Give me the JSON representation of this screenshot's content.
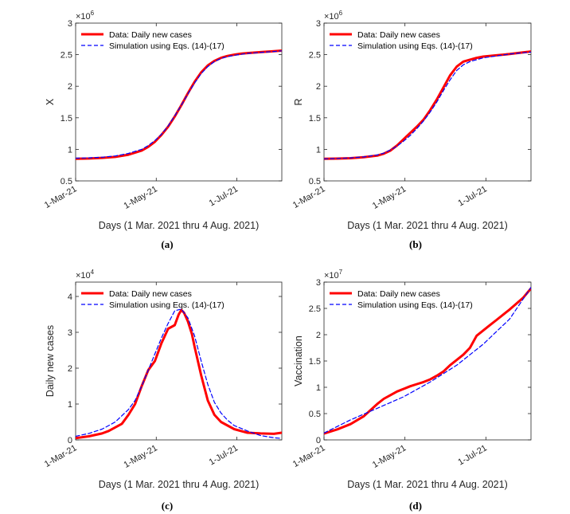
{
  "chart_data": [
    {
      "type": "line",
      "panel_caption": "(a)",
      "ylabel": "X",
      "xlabel": "Days (1 Mar. 2021 thru 4 Aug. 2021)",
      "xticks": [
        "1-Mar-21",
        "1-May-21",
        "1-Jul-21"
      ],
      "xtick_days": [
        0,
        61,
        122
      ],
      "xlim": [
        0,
        156
      ],
      "ylim": [
        0.5,
        3
      ],
      "yticks": [
        0.5,
        1,
        1.5,
        2,
        2.5,
        3
      ],
      "ytick_labels": [
        "0.5",
        "1",
        "1.5",
        "2",
        "2.5",
        "3"
      ],
      "exponent": "6",
      "legend_position": "top-left",
      "series": [
        {
          "name": "Data: Daily new cases",
          "color": "#ff0000",
          "style": "solid",
          "x": [
            0,
            10,
            20,
            30,
            40,
            50,
            55,
            60,
            65,
            70,
            75,
            80,
            85,
            90,
            95,
            100,
            105,
            110,
            115,
            120,
            125,
            130,
            140,
            150,
            156
          ],
          "y": [
            0.85,
            0.855,
            0.865,
            0.88,
            0.915,
            0.98,
            1.04,
            1.12,
            1.23,
            1.36,
            1.52,
            1.7,
            1.89,
            2.07,
            2.22,
            2.33,
            2.4,
            2.45,
            2.48,
            2.5,
            2.515,
            2.525,
            2.54,
            2.555,
            2.565
          ]
        },
        {
          "name": "Simulation using Eqs. (14)-(17)",
          "color": "#0000ff",
          "style": "dashed",
          "x": [
            0,
            10,
            20,
            30,
            40,
            50,
            55,
            60,
            65,
            70,
            75,
            80,
            85,
            90,
            95,
            100,
            105,
            110,
            115,
            120,
            125,
            130,
            140,
            150,
            156
          ],
          "y": [
            0.86,
            0.865,
            0.875,
            0.895,
            0.935,
            1.0,
            1.06,
            1.14,
            1.24,
            1.37,
            1.53,
            1.7,
            1.88,
            2.05,
            2.2,
            2.31,
            2.39,
            2.44,
            2.47,
            2.49,
            2.505,
            2.52,
            2.535,
            2.55,
            2.56
          ]
        }
      ]
    },
    {
      "type": "line",
      "panel_caption": "(b)",
      "ylabel": "R",
      "xlabel": "Days (1 Mar. 2021 thru 4 Aug. 2021)",
      "xticks": [
        "1-Mar-21",
        "1-May-21",
        "1-Jul-21"
      ],
      "xtick_days": [
        0,
        61,
        122
      ],
      "xlim": [
        0,
        156
      ],
      "ylim": [
        0.5,
        3
      ],
      "yticks": [
        0.5,
        1,
        1.5,
        2,
        2.5,
        3
      ],
      "ytick_labels": [
        "0.5",
        "1",
        "1.5",
        "2",
        "2.5",
        "3"
      ],
      "exponent": "6",
      "legend_position": "top-left",
      "series": [
        {
          "name": "Data: Daily new cases",
          "color": "#ff0000",
          "style": "solid",
          "x": [
            0,
            10,
            20,
            30,
            40,
            45,
            50,
            55,
            60,
            65,
            70,
            75,
            80,
            85,
            90,
            95,
            100,
            105,
            110,
            115,
            120,
            130,
            140,
            150,
            156
          ],
          "y": [
            0.85,
            0.853,
            0.86,
            0.875,
            0.9,
            0.93,
            0.98,
            1.06,
            1.16,
            1.26,
            1.36,
            1.47,
            1.62,
            1.79,
            1.98,
            2.17,
            2.31,
            2.39,
            2.42,
            2.45,
            2.47,
            2.49,
            2.51,
            2.535,
            2.55
          ]
        },
        {
          "name": "Simulation using Eqs. (14)-(17)",
          "color": "#0000ff",
          "style": "dashed",
          "x": [
            0,
            10,
            20,
            30,
            40,
            45,
            50,
            55,
            60,
            65,
            70,
            75,
            80,
            85,
            90,
            95,
            100,
            105,
            110,
            115,
            120,
            130,
            140,
            150,
            156
          ],
          "y": [
            0.85,
            0.855,
            0.865,
            0.88,
            0.91,
            0.94,
            0.99,
            1.05,
            1.13,
            1.22,
            1.33,
            1.45,
            1.59,
            1.75,
            1.93,
            2.1,
            2.25,
            2.34,
            2.39,
            2.42,
            2.45,
            2.48,
            2.51,
            2.53,
            2.54
          ]
        }
      ]
    },
    {
      "type": "line",
      "panel_caption": "(c)",
      "ylabel": "Daily new cases",
      "xlabel": "Days (1 Mar. 2021 thru 4 Aug. 2021)",
      "xticks": [
        "1-Mar-21",
        "1-May-21",
        "1-Jul-21"
      ],
      "xtick_days": [
        0,
        61,
        122
      ],
      "xlim": [
        0,
        156
      ],
      "ylim": [
        0,
        4.4
      ],
      "yticks": [
        0,
        1,
        2,
        3,
        4
      ],
      "ytick_labels": [
        "0",
        "1",
        "2",
        "3",
        "4"
      ],
      "exponent": "4",
      "legend_position": "top-left",
      "series": [
        {
          "name": "Data: Daily new cases",
          "color": "#ff0000",
          "style": "solid",
          "x": [
            0,
            10,
            20,
            25,
            30,
            35,
            40,
            45,
            50,
            55,
            60,
            65,
            70,
            75,
            78,
            80,
            82,
            85,
            88,
            90,
            95,
            100,
            105,
            110,
            115,
            120,
            125,
            130,
            140,
            150,
            156
          ],
          "y": [
            0.05,
            0.1,
            0.18,
            0.25,
            0.35,
            0.45,
            0.7,
            1.0,
            1.5,
            1.95,
            2.2,
            2.7,
            3.1,
            3.2,
            3.5,
            3.62,
            3.55,
            3.3,
            2.95,
            2.6,
            1.8,
            1.1,
            0.7,
            0.5,
            0.4,
            0.3,
            0.25,
            0.2,
            0.18,
            0.17,
            0.2
          ]
        },
        {
          "name": "Simulation using Eqs. (14)-(17)",
          "color": "#0000ff",
          "style": "dashed",
          "x": [
            0,
            10,
            20,
            30,
            40,
            45,
            50,
            55,
            60,
            65,
            70,
            75,
            80,
            85,
            90,
            95,
            100,
            105,
            110,
            115,
            120,
            130,
            140,
            150,
            156
          ],
          "y": [
            0.1,
            0.18,
            0.3,
            0.5,
            0.85,
            1.1,
            1.5,
            1.95,
            2.4,
            2.85,
            3.25,
            3.6,
            3.65,
            3.4,
            2.9,
            2.2,
            1.55,
            1.05,
            0.75,
            0.55,
            0.4,
            0.25,
            0.12,
            0.06,
            0.04
          ]
        }
      ]
    },
    {
      "type": "line",
      "panel_caption": "(d)",
      "ylabel": "Vaccination",
      "xlabel": "Days (1 Mar. 2021 thru 4 Aug. 2021)",
      "xticks": [
        "1-Mar-21",
        "1-May-21",
        "1-Jul-21"
      ],
      "xtick_days": [
        0,
        61,
        122
      ],
      "xlim": [
        0,
        156
      ],
      "ylim": [
        0,
        3
      ],
      "yticks": [
        0,
        0.5,
        1,
        1.5,
        2,
        2.5,
        3
      ],
      "ytick_labels": [
        "0",
        "0.5",
        "1",
        "1.5",
        "2",
        "2.5",
        "3"
      ],
      "exponent": "7",
      "legend_position": "top-left",
      "series": [
        {
          "name": "Data: Daily new cases",
          "color": "#ff0000",
          "style": "solid",
          "x": [
            0,
            10,
            20,
            30,
            40,
            45,
            50,
            55,
            60,
            65,
            70,
            75,
            80,
            85,
            90,
            95,
            100,
            105,
            110,
            115,
            120,
            125,
            130,
            140,
            150,
            156
          ],
          "y": [
            0.12,
            0.2,
            0.3,
            0.45,
            0.68,
            0.78,
            0.85,
            0.92,
            0.97,
            1.02,
            1.06,
            1.1,
            1.15,
            1.22,
            1.3,
            1.42,
            1.52,
            1.62,
            1.75,
            1.98,
            2.08,
            2.18,
            2.28,
            2.48,
            2.7,
            2.88
          ]
        },
        {
          "name": "Simulation using Eqs. (14)-(17)",
          "color": "#0000ff",
          "style": "dashed",
          "x": [
            0,
            20,
            40,
            60,
            80,
            100,
            120,
            140,
            156
          ],
          "y": [
            0.13,
            0.38,
            0.6,
            0.82,
            1.1,
            1.42,
            1.82,
            2.3,
            2.9
          ]
        }
      ]
    }
  ]
}
